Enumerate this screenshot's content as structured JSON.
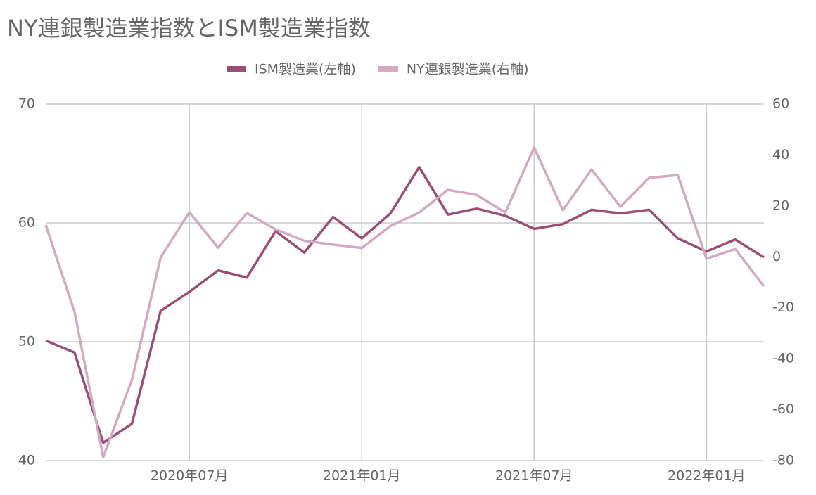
{
  "chart_data": {
    "type": "line",
    "title": "NY連銀製造業指数とISM製造業指数",
    "categories": [
      null,
      null,
      null,
      null,
      null,
      "2020年07月",
      null,
      null,
      null,
      null,
      null,
      "2021年01月",
      null,
      null,
      null,
      null,
      null,
      "2021年07月",
      null,
      null,
      null,
      null,
      null,
      "2022年01月",
      null,
      null
    ],
    "series": [
      {
        "name": "ISM製造業(左軸)",
        "color": "#9c4f76",
        "values": [
          50.1,
          49.1,
          41.5,
          43.1,
          52.6,
          54.2,
          56.0,
          55.4,
          59.3,
          57.5,
          60.5,
          58.7,
          60.8,
          64.7,
          60.7,
          61.2,
          60.6,
          59.5,
          59.9,
          61.1,
          60.8,
          61.1,
          58.7,
          57.6,
          58.6,
          57.1
        ]
      },
      {
        "name": "NY連銀製造業(右軸)",
        "color": "#d4a9c1",
        "axis": "y2",
        "values": [
          12.5,
          -21.5,
          -78.7,
          -48.3,
          -0.2,
          17.5,
          3.6,
          17.2,
          10.8,
          6.3,
          4.8,
          3.5,
          12.1,
          17.4,
          26.3,
          24.3,
          17.4,
          43.0,
          18.3,
          34.3,
          19.7,
          31.0,
          32.1,
          -0.7,
          3.1,
          -11.6
        ]
      }
    ],
    "ylim": [
      40,
      70
    ],
    "yticks": [
      40,
      50,
      60,
      70
    ],
    "y2lim": [
      -80,
      60
    ],
    "y2ticks": [
      -80,
      -60,
      -40,
      -20,
      0,
      20,
      40,
      60
    ],
    "grid": true,
    "legend": "top"
  }
}
